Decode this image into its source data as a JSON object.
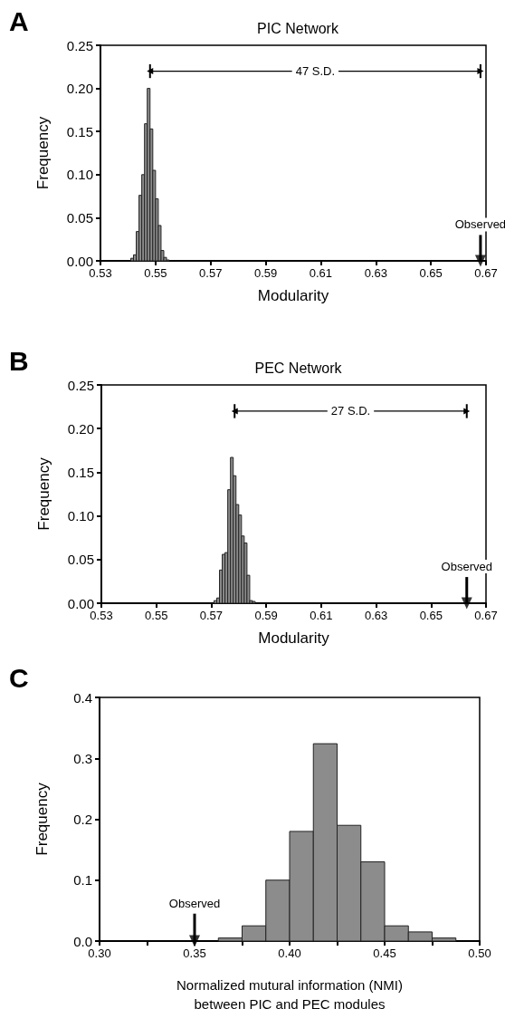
{
  "chart_data": [
    {
      "type": "histogram",
      "title": "PIC Network",
      "xlabel": "Modularity",
      "ylabel": "Frequency",
      "color": "#8c8c8c",
      "bins": [
        0.541,
        0.542,
        0.543,
        0.544,
        0.545,
        0.546,
        0.547,
        0.548,
        0.549,
        0.55,
        0.551,
        0.552,
        0.553,
        0.554,
        0.555
      ],
      "values": [
        0.003,
        0.007,
        0.034,
        0.076,
        0.1,
        0.159,
        0.2,
        0.153,
        0.105,
        0.072,
        0.041,
        0.012,
        0.004,
        0.001
      ],
      "series": [
        {
          "type": "line",
          "name": "47 S.D.",
          "color": "#000000",
          "marker": "triangle",
          "x": [
            0.548,
            0.668
          ],
          "values": [
            0.22,
            0.22
          ],
          "errors": [
            0.008,
            0.008
          ]
        },
        {
          "type": "scatter",
          "name": "Observed",
          "color": "#000000",
          "marker": "triangle",
          "x": [
            0.668
          ],
          "values": [
            0
          ],
          "errors": [
            [
              0,
              0.03
            ]
          ]
        }
      ],
      "xlim": [
        0.53,
        0.67
      ],
      "xticks": [
        0.53,
        0.55,
        0.57,
        0.59,
        0.61,
        0.63,
        0.65,
        0.67
      ],
      "ylim": [
        0,
        0.25
      ],
      "yticks": [
        {
          "value": 0,
          "label": "0.00"
        },
        0.05,
        {
          "value": 0.1,
          "label": "0.10"
        },
        0.15,
        {
          "value": 0.2,
          "label": "0.20"
        },
        0.25
      ],
      "annotations": [
        "A"
      ]
    },
    {
      "type": "histogram",
      "title": "PEC Network",
      "xlabel": "Modularity",
      "ylabel": "Frequency",
      "color": "#8c8c8c",
      "bins": [
        0.571,
        0.572,
        0.573,
        0.574,
        0.575,
        0.576,
        0.577,
        0.578,
        0.579,
        0.58,
        0.581,
        0.582,
        0.583,
        0.584,
        0.585,
        0.586
      ],
      "values": [
        0.003,
        0.006,
        0.038,
        0.056,
        0.058,
        0.13,
        0.167,
        0.146,
        0.113,
        0.101,
        0.077,
        0.069,
        0.032,
        0.003,
        0.002
      ],
      "series": [
        {
          "type": "line",
          "name": "27 S.D.",
          "color": "#000000",
          "marker": "triangle",
          "x": [
            0.5785,
            0.663
          ],
          "values": [
            0.22,
            0.22
          ],
          "errors": [
            0.008,
            0.008
          ]
        },
        {
          "type": "scatter",
          "name": "Observed",
          "color": "#000000",
          "marker": "triangle",
          "x": [
            0.663
          ],
          "values": [
            0
          ],
          "errors": [
            [
              0,
              0.03
            ]
          ]
        }
      ],
      "xlim": [
        0.53,
        0.67
      ],
      "xticks": [
        0.53,
        0.55,
        0.57,
        0.59,
        0.61,
        0.63,
        0.65,
        0.67
      ],
      "ylim": [
        0,
        0.25
      ],
      "yticks": [
        {
          "value": 0,
          "label": "0.00"
        },
        0.05,
        {
          "value": 0.1,
          "label": "0.10"
        },
        0.15,
        {
          "value": 0.2,
          "label": "0.20"
        },
        0.25
      ],
      "annotations": [
        "B"
      ]
    },
    {
      "type": "histogram",
      "xlabel": "Normalized mutural information (NMI)\nbetween PIC and PEC modules",
      "ylabel": "Frequency",
      "color": "#8c8c8c",
      "bins": [
        0.3625,
        0.375,
        0.3875,
        0.4,
        0.4125,
        0.425,
        0.4375,
        0.45,
        0.4625,
        0.475,
        0.4875
      ],
      "values": [
        0.005,
        0.025,
        0.1,
        0.18,
        0.324,
        0.19,
        0.13,
        0.025,
        0.015,
        0.005
      ],
      "series": [
        {
          "type": "scatter",
          "name": "Observed",
          "color": "#000000",
          "marker": "triangle",
          "x": [
            0.35
          ],
          "values": [
            0
          ],
          "errors": [
            [
              0,
              0.045
            ]
          ]
        }
      ],
      "xlim": [
        0.3,
        0.5
      ],
      "xticks": [
        {
          "value": 0.3,
          "label": "0.30"
        },
        {
          "value": 0.325,
          "label": null
        },
        0.35,
        {
          "value": 0.375,
          "label": null
        },
        {
          "value": 0.4,
          "label": "0.40"
        },
        {
          "value": 0.425,
          "label": null
        },
        0.45,
        {
          "value": 0.475,
          "label": null
        },
        {
          "value": 0.5,
          "label": "0.50"
        }
      ],
      "ylim": [
        0,
        0.4
      ],
      "yticks": [
        {
          "value": 0,
          "label": "0.0"
        },
        0.1,
        0.2,
        0.3,
        0.4
      ],
      "annotations": [
        "C"
      ]
    }
  ]
}
